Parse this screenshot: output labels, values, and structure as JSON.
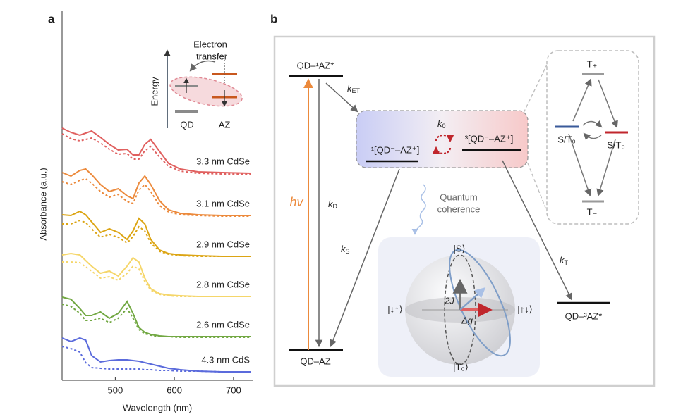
{
  "chart_data": {
    "type": "line",
    "panel_label": "a",
    "xlabel": "Wavelength (nm)",
    "ylabel": "Absorbance (a.u.)",
    "x": [
      410,
      425,
      440,
      450,
      460,
      475,
      490,
      505,
      520,
      530,
      540,
      550,
      560,
      575,
      590,
      610,
      640,
      680,
      730
    ],
    "xlim": [
      410,
      730
    ],
    "xticks": [
      500,
      600,
      700
    ],
    "ylim": [
      0,
      525
    ],
    "series": [
      {
        "name": "3.3 nm CdSe",
        "color": "#e0605f",
        "values": [
          358,
          352,
          348,
          351,
          354,
          345,
          335,
          327,
          328,
          320,
          320,
          335,
          342,
          325,
          308,
          300,
          296,
          295,
          294
        ]
      },
      {
        "color": "#e0605f",
        "dashed": true,
        "values": [
          350,
          343,
          340,
          342,
          344,
          337,
          328,
          321,
          322,
          314,
          314,
          326,
          332,
          317,
          304,
          297,
          294,
          293,
          293
        ]
      },
      {
        "name": "3.1 nm CdSe",
        "color": "#ec8a3c",
        "values": [
          295,
          290,
          298,
          300,
          292,
          278,
          268,
          272,
          262,
          258,
          280,
          290,
          278,
          255,
          242,
          237,
          235,
          234,
          234
        ]
      },
      {
        "color": "#ec8a3c",
        "dashed": true,
        "values": [
          282,
          278,
          284,
          286,
          280,
          268,
          260,
          264,
          254,
          251,
          270,
          278,
          268,
          248,
          239,
          235,
          234,
          233,
          233
        ]
      },
      {
        "name": "2.9 nm CdSe",
        "color": "#dca514",
        "values": [
          235,
          234,
          240,
          235,
          225,
          210,
          215,
          210,
          200,
          212,
          230,
          222,
          200,
          185,
          180,
          178,
          177,
          176,
          176
        ]
      },
      {
        "color": "#dca514",
        "dashed": true,
        "values": [
          222,
          222,
          227,
          224,
          215,
          203,
          207,
          203,
          195,
          204,
          218,
          212,
          195,
          183,
          179,
          177,
          176,
          176,
          176
        ]
      },
      {
        "name": "2.8 nm CdSe",
        "color": "#f5d66a",
        "values": [
          178,
          180,
          178,
          170,
          162,
          152,
          155,
          148,
          162,
          174,
          168,
          145,
          130,
          123,
          121,
          120,
          119,
          119,
          119
        ]
      },
      {
        "color": "#f5d66a",
        "dashed": true,
        "values": [
          168,
          168,
          167,
          161,
          155,
          145,
          147,
          142,
          152,
          162,
          158,
          140,
          128,
          122,
          120,
          119,
          119,
          119,
          119
        ]
      },
      {
        "name": "2.6 nm CdSe",
        "color": "#72a843",
        "values": [
          118,
          115,
          102,
          92,
          92,
          97,
          88,
          95,
          112,
          95,
          75,
          68,
          65,
          63,
          62,
          62,
          62,
          62,
          62
        ]
      },
      {
        "color": "#72a843",
        "dashed": true,
        "values": [
          108,
          105,
          95,
          85,
          85,
          88,
          82,
          88,
          102,
          88,
          72,
          66,
          64,
          62,
          62,
          61,
          61,
          61,
          61
        ]
      },
      {
        "name": "4.3 nm CdS",
        "color": "#5b6bdc",
        "values": [
          60,
          55,
          60,
          57,
          35,
          26,
          28,
          29,
          29,
          28,
          27,
          25,
          23,
          20,
          17,
          15,
          13,
          12,
          12
        ]
      },
      {
        "color": "#5b6bdc",
        "dashed": true,
        "values": [
          48,
          45,
          40,
          25,
          18,
          17,
          16,
          16,
          16,
          16,
          16,
          15,
          15,
          14,
          14,
          13,
          13,
          12,
          12
        ]
      }
    ],
    "inset": {
      "axis_label": "Energy",
      "annotation": [
        "Electron",
        "transfer"
      ],
      "labels": [
        "QD",
        "AZ"
      ]
    }
  },
  "diagram": {
    "panel_label": "b",
    "states": {
      "excited": "QD–¹AZ*",
      "ground": "QD–AZ",
      "singlet_pair": "¹[QD⁻–AZ⁺]",
      "triplet_pair": "³[QD⁻–AZ⁺]",
      "triplet": "QD–³AZ*"
    },
    "excitation": "hv",
    "rates": [
      {
        "symbol": "k",
        "sub": "ET"
      },
      {
        "symbol": "k",
        "sub": "D"
      },
      {
        "symbol": "k",
        "sub": "S"
      },
      {
        "symbol": "k",
        "sub": "0"
      },
      {
        "symbol": "k",
        "sub": "T"
      }
    ],
    "coherence": [
      "Quantum",
      "coherence"
    ],
    "sublevels": {
      "top": "T₊",
      "left": "S/T₀",
      "right": "S/T₀",
      "bottom": "T₋"
    },
    "sphere": {
      "top": "|S⟩",
      "bottom": "|T₀⟩",
      "left": "|↓↑⟩",
      "right": "|↑↓⟩",
      "exchange": "2J",
      "zeeman": "Δg"
    }
  }
}
